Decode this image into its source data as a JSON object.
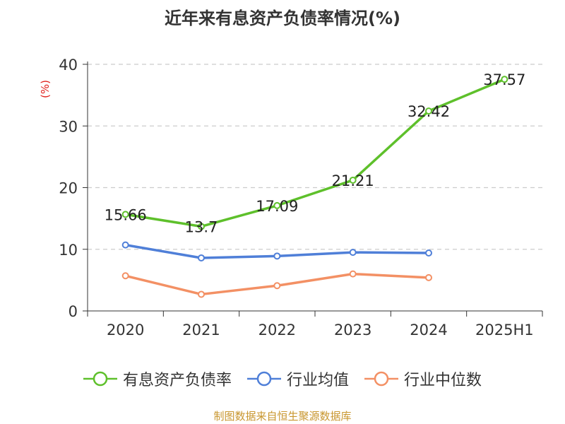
{
  "title": "近年来有息资产负债率情况(%)",
  "source": "制图数据来自恒生聚源数据库",
  "chart_data": {
    "type": "line",
    "title": "近年来有息资产负债率情况(%)",
    "ylabel": "(%)",
    "xlabel": "",
    "ylim": [
      0,
      40
    ],
    "yticks": [
      0,
      10,
      20,
      30,
      40
    ],
    "categories": [
      "2020",
      "2021",
      "2022",
      "2023",
      "2024",
      "2025H1"
    ],
    "grid": "horizontal-dashed",
    "legend": "bottom",
    "series": [
      {
        "name": "有息资产负债率",
        "color": "#5ec02b",
        "values": [
          15.66,
          13.7,
          17.09,
          21.21,
          32.42,
          37.57
        ],
        "labels": [
          "15.66",
          "13.7",
          "17.09",
          "21.21",
          "32.42",
          "37.57"
        ]
      },
      {
        "name": "行业均值",
        "color": "#4f7fd8",
        "values": [
          10.7,
          8.6,
          8.9,
          9.5,
          9.4,
          null
        ]
      },
      {
        "name": "行业中位数",
        "color": "#f39064",
        "values": [
          5.7,
          2.7,
          4.1,
          6.0,
          5.4,
          null
        ]
      }
    ]
  }
}
